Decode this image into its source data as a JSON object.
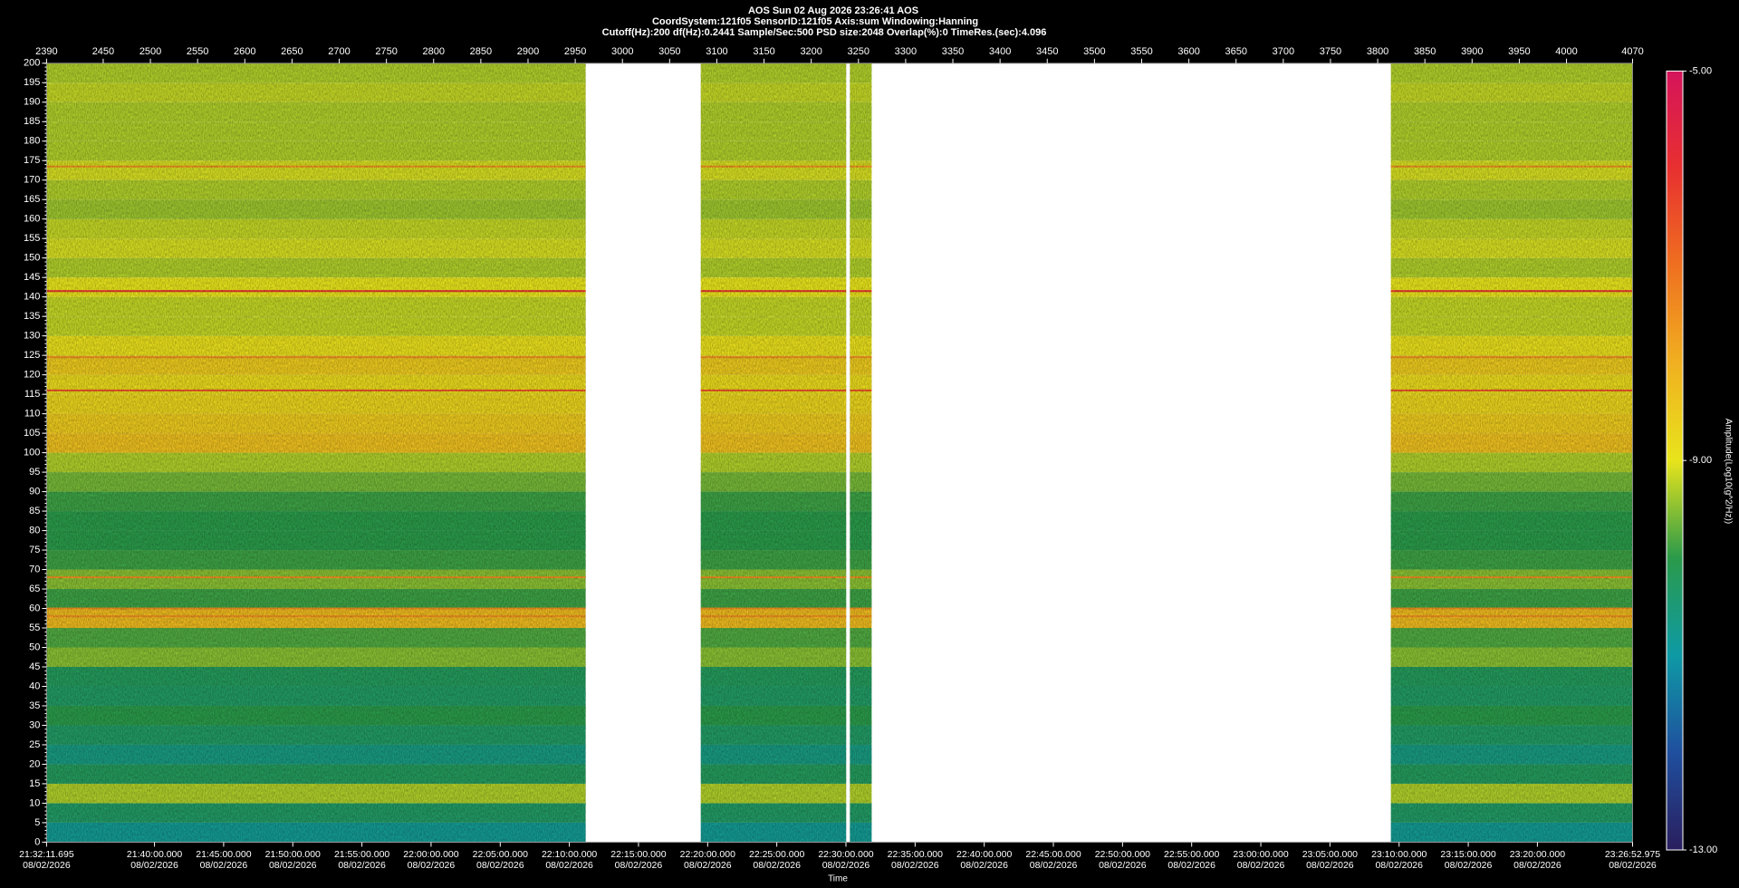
{
  "chart_data": {
    "type": "spectrogram",
    "title": "AOS  Sun 02 Aug 2026 23:26:41  AOS",
    "subtitle": "CoordSystem:121f05    SensorID:121f05     Axis:sum      Windowing:Hanning",
    "settings_line": "Cutoff(Hz):200      df(Hz):0.2441      Sample/Sec:500      PSD size:2048      Overlap(%):0      TimeRes.(sec):4.096",
    "xlabel": "Time",
    "colorbar_label": "Amplitude(Log10(g^2/Hz))",
    "xlim": [
      2390,
      4070
    ],
    "xticks": [
      2390,
      2450,
      2500,
      2550,
      2600,
      2650,
      2700,
      2750,
      2800,
      2850,
      2900,
      2950,
      3000,
      3050,
      3100,
      3150,
      3200,
      3250,
      3300,
      3350,
      3400,
      3450,
      3500,
      3550,
      3600,
      3650,
      3700,
      3750,
      3800,
      3850,
      3900,
      3950,
      4000,
      4070
    ],
    "x2lim": [
      {
        "time": "21:32:11.695",
        "date": "08/02/2026"
      },
      {
        "time": "23:26:52.975",
        "date": "08/02/2026"
      }
    ],
    "x2ticks": [
      {
        "time": "21:32:11.695",
        "date": "08/02/2026"
      },
      {
        "time": "21:40:00.000",
        "date": "08/02/2026"
      },
      {
        "time": "21:45:00.000",
        "date": "08/02/2026"
      },
      {
        "time": "21:50:00.000",
        "date": "08/02/2026"
      },
      {
        "time": "21:55:00.000",
        "date": "08/02/2026"
      },
      {
        "time": "22:00:00.000",
        "date": "08/02/2026"
      },
      {
        "time": "22:05:00.000",
        "date": "08/02/2026"
      },
      {
        "time": "22:10:00.000",
        "date": "08/02/2026"
      },
      {
        "time": "22:15:00.000",
        "date": "08/02/2026"
      },
      {
        "time": "22:20:00.000",
        "date": "08/02/2026"
      },
      {
        "time": "22:25:00.000",
        "date": "08/02/2026"
      },
      {
        "time": "22:30:00.000",
        "date": "08/02/2026"
      },
      {
        "time": "22:35:00.000",
        "date": "08/02/2026"
      },
      {
        "time": "22:40:00.000",
        "date": "08/02/2026"
      },
      {
        "time": "22:45:00.000",
        "date": "08/02/2026"
      },
      {
        "time": "22:50:00.000",
        "date": "08/02/2026"
      },
      {
        "time": "22:55:00.000",
        "date": "08/02/2026"
      },
      {
        "time": "23:00:00.000",
        "date": "08/02/2026"
      },
      {
        "time": "23:05:00.000",
        "date": "08/02/2026"
      },
      {
        "time": "23:10:00.000",
        "date": "08/02/2026"
      },
      {
        "time": "23:15:00.000",
        "date": "08/02/2026"
      },
      {
        "time": "23:20:00.000",
        "date": "08/02/2026"
      },
      {
        "time": "23:26:52.975",
        "date": "08/02/2026"
      }
    ],
    "ylim": [
      0,
      200
    ],
    "yticks": [
      0,
      5,
      10,
      15,
      20,
      25,
      30,
      35,
      40,
      45,
      50,
      55,
      60,
      65,
      70,
      75,
      80,
      85,
      90,
      95,
      100,
      105,
      110,
      115,
      120,
      125,
      130,
      135,
      140,
      145,
      150,
      155,
      160,
      165,
      170,
      175,
      180,
      185,
      190,
      195,
      200
    ],
    "clim": [
      -13,
      -5
    ],
    "cticks": [
      {
        "value": -5,
        "label": "-5.00"
      },
      {
        "value": -9,
        "label": "-9.00"
      },
      {
        "value": -13,
        "label": "-13.00"
      }
    ],
    "colormap": [
      "#2a1e5e",
      "#1f4f9e",
      "#0e9aa5",
      "#2a9a4a",
      "#e8e41c",
      "#f0b020",
      "#ef7020",
      "#e83030",
      "#d4145a"
    ],
    "segments": [
      [
        2390,
        2961
      ],
      [
        3083,
        3237
      ],
      [
        3241,
        3264
      ],
      [
        3814,
        4070
      ]
    ],
    "bins": [
      0,
      5,
      10,
      15,
      20,
      25,
      30,
      35,
      40,
      45,
      50,
      55,
      60,
      65,
      70,
      75,
      80,
      85,
      90,
      95,
      100,
      105,
      110,
      115,
      120,
      125,
      130,
      135,
      140,
      145,
      150,
      155,
      160,
      165,
      170,
      175,
      180,
      185,
      190,
      195,
      200
    ],
    "amplitude": [
      -10.8,
      -10.3,
      -9.3,
      -10.2,
      -10.6,
      -10.3,
      -10.0,
      -10.3,
      -10.2,
      -9.5,
      -9.8,
      -8.2,
      -9.9,
      -9.5,
      -9.9,
      -10.0,
      -10.0,
      -9.9,
      -9.6,
      -9.3,
      -8.3,
      -8.5,
      -8.7,
      -8.8,
      -8.5,
      -8.9,
      -9.2,
      -9.2,
      -9.0,
      -9.3,
      -9.1,
      -9.2,
      -9.4,
      -9.3,
      -9.1,
      -9.3,
      -9.3,
      -9.3,
      -9.2,
      -9.3
    ],
    "tones": [
      {
        "freq": 173.5,
        "amplitude": -7.5
      },
      {
        "freq": 141.5,
        "amplitude": -6.0
      },
      {
        "freq": 124.5,
        "amplitude": -7.5
      },
      {
        "freq": 116,
        "amplitude": -6.5
      },
      {
        "freq": 68,
        "amplitude": -7.5
      },
      {
        "freq": 60,
        "amplitude": -7.5
      },
      {
        "freq": 58,
        "amplitude": -7.5
      }
    ]
  }
}
